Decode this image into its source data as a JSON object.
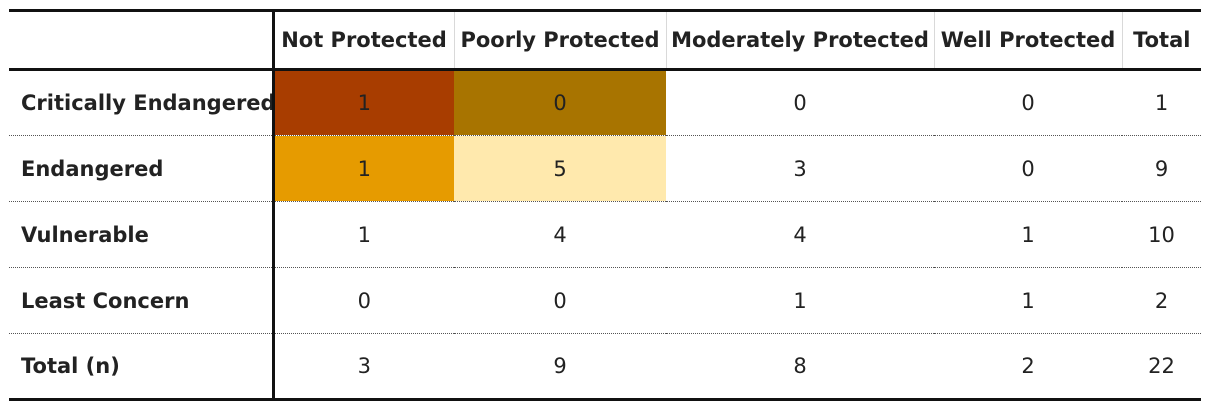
{
  "table": {
    "columns": [
      "Not Protected",
      "Poorly Protected",
      "Moderately Protected",
      "Well Protected",
      "Total"
    ],
    "rows": [
      {
        "label": "Critically Endangered",
        "values": [
          "1",
          "0",
          "0",
          "0",
          "1"
        ]
      },
      {
        "label": "Endangered",
        "values": [
          "1",
          "5",
          "3",
          "0",
          "9"
        ]
      },
      {
        "label": "Vulnerable",
        "values": [
          "1",
          "4",
          "4",
          "1",
          "10"
        ]
      },
      {
        "label": "Least Concern",
        "values": [
          "0",
          "0",
          "1",
          "1",
          "2"
        ]
      },
      {
        "label": "Total (n)",
        "values": [
          "3",
          "9",
          "8",
          "2",
          "22"
        ]
      }
    ]
  },
  "highlight_colors": {
    "critically_endangered_not_protected": "#a83d00",
    "critically_endangered_poorly_protected": "#a87400",
    "endangered_not_protected": "#e69b00",
    "endangered_poorly_protected": "#ffe9ad"
  }
}
